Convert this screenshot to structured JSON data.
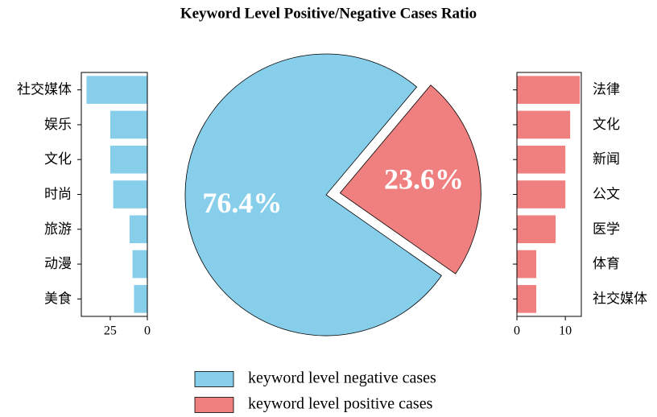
{
  "chart_data": [
    {
      "type": "barh",
      "y_axis_side": "left",
      "categories": [
        "社交媒体",
        "娱乐",
        "文化",
        "时尚",
        "旅游",
        "动漫",
        "美食"
      ],
      "values": [
        41,
        25,
        25,
        23,
        12,
        10,
        9
      ],
      "color": "#87ceeb",
      "xlim": [
        44.5,
        0
      ],
      "xticks": [
        25,
        0
      ]
    },
    {
      "type": "pie",
      "title": "Keyword Level Positive/Negative Cases Ratio",
      "categories": [
        "keyword level negative cases",
        "keyword level positive cases"
      ],
      "values": [
        76.4,
        23.6
      ],
      "value_labels": [
        "76.4%",
        "23.6%"
      ],
      "colors": [
        "#87ceeb",
        "#f08080"
      ],
      "explode": [
        0,
        0.1
      ],
      "legend": "lower center"
    },
    {
      "type": "barh",
      "y_axis_side": "right",
      "categories": [
        "法律",
        "文化",
        "新闻",
        "公文",
        "医学",
        "体育",
        "社交媒体"
      ],
      "values": [
        13,
        11,
        10,
        10,
        8,
        4,
        4
      ],
      "color": "#f08080",
      "xlim": [
        0,
        13.3
      ],
      "xticks": [
        0,
        10
      ]
    }
  ]
}
